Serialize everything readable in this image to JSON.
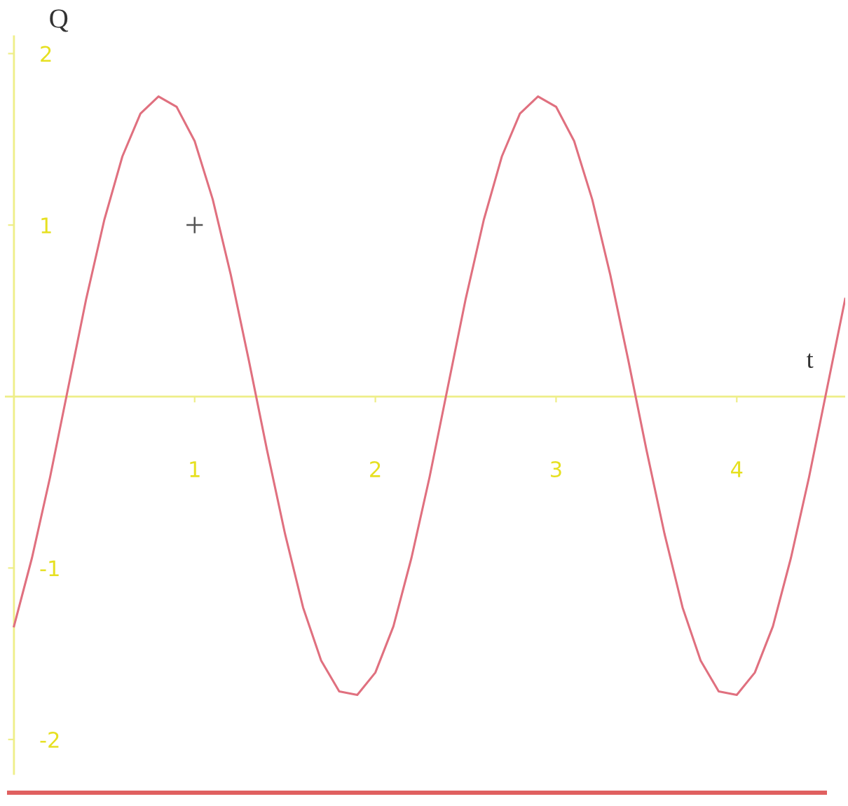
{
  "chart_data": {
    "type": "line",
    "xlabel": "t",
    "ylabel": "Q",
    "x": [
      0.0,
      0.1,
      0.2,
      0.3,
      0.4,
      0.5,
      0.6,
      0.7,
      0.8,
      0.9,
      1.0,
      1.1,
      1.2,
      1.3,
      1.4,
      1.5,
      1.6,
      1.7,
      1.8,
      1.9,
      2.0,
      2.1,
      2.2,
      2.3,
      2.4,
      2.5,
      2.6,
      2.7,
      2.8,
      2.9,
      3.0,
      3.1,
      3.2,
      3.3,
      3.4,
      3.5,
      3.6,
      3.7,
      3.8,
      3.9,
      4.0,
      4.1,
      4.2,
      4.3,
      4.4,
      4.5,
      4.6
    ],
    "series": [
      {
        "color": "#e0707f",
        "values": [
          -1.34,
          -0.94,
          -0.47,
          0.05,
          0.57,
          1.03,
          1.4,
          1.65,
          1.75,
          1.69,
          1.49,
          1.15,
          0.71,
          0.21,
          -0.31,
          -0.8,
          -1.23,
          -1.54,
          -1.72,
          -1.74,
          -1.61,
          -1.34,
          -0.94,
          -0.47,
          0.05,
          0.57,
          1.03,
          1.4,
          1.65,
          1.75,
          1.69,
          1.49,
          1.15,
          0.71,
          0.21,
          -0.31,
          -0.8,
          -1.23,
          -1.54,
          -1.72,
          -1.74,
          -1.61,
          -1.34,
          -0.94,
          -0.47,
          0.05,
          0.57
        ]
      },
      {
        "type": "scatter",
        "x": [
          1
        ],
        "values": [
          1
        ],
        "color": "#555555",
        "marker": "cross"
      }
    ],
    "xlim": [
      -0.05,
      4.6
    ],
    "ylim": [
      -2.2,
      2.1
    ],
    "xticks": [
      1,
      2,
      3,
      4
    ],
    "yticks": [
      -2,
      -1,
      1,
      2
    ],
    "ref_lines": [
      {
        "axis": "y",
        "value": 0,
        "color": "#eeee88"
      }
    ],
    "grid": false,
    "line_style": "solid"
  }
}
